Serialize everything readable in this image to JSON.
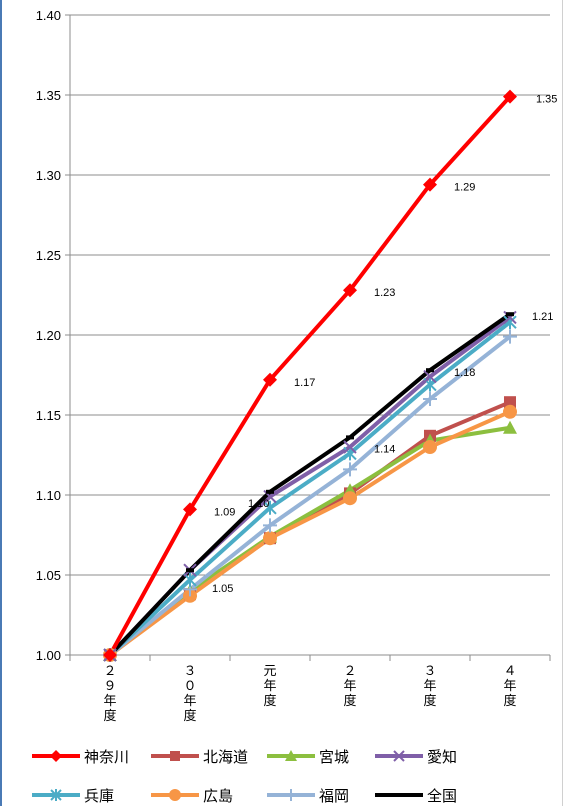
{
  "chart_data": {
    "type": "line",
    "x": [
      "２９年度",
      "３０年度",
      "元年度",
      "２年度",
      "３年度",
      "４年度"
    ],
    "ylim": [
      1.0,
      1.4
    ],
    "yticks": [
      "1.00",
      "1.05",
      "1.10",
      "1.15",
      "1.20",
      "1.25",
      "1.30",
      "1.35",
      "1.40"
    ],
    "grid": true,
    "legend_position": "bottom",
    "series": [
      {
        "name": "神奈川",
        "color": "#ff0000",
        "marker": "diamond",
        "values": [
          1.0,
          1.091,
          1.172,
          1.228,
          1.294,
          1.349
        ]
      },
      {
        "name": "北海道",
        "color": "#c0504d",
        "marker": "square",
        "values": [
          1.0,
          1.038,
          1.073,
          1.101,
          1.137,
          1.158
        ]
      },
      {
        "name": "宮城",
        "color": "#8cbf3f",
        "marker": "triangle",
        "values": [
          1.0,
          1.04,
          1.074,
          1.103,
          1.134,
          1.142
        ]
      },
      {
        "name": "愛知",
        "color": "#7f5fa8",
        "marker": "x",
        "values": [
          1.0,
          1.053,
          1.099,
          1.13,
          1.174,
          1.211
        ]
      },
      {
        "name": "兵庫",
        "color": "#4bacc6",
        "marker": "star",
        "values": [
          1.0,
          1.047,
          1.092,
          1.126,
          1.169,
          1.208
        ]
      },
      {
        "name": "広島",
        "color": "#f79646",
        "marker": "circle",
        "values": [
          1.0,
          1.037,
          1.073,
          1.098,
          1.13,
          1.152
        ]
      },
      {
        "name": "福岡",
        "color": "#95b3d7",
        "marker": "plus",
        "values": [
          1.0,
          1.041,
          1.081,
          1.116,
          1.16,
          1.199
        ]
      },
      {
        "name": "全国",
        "color": "#000000",
        "marker": "dash",
        "values": [
          1.0,
          1.053,
          1.102,
          1.136,
          1.178,
          1.213
        ]
      }
    ],
    "data_labels": [
      {
        "series": "神奈川",
        "index": 1,
        "text": "1.09"
      },
      {
        "series": "神奈川",
        "index": 2,
        "text": "1.17"
      },
      {
        "series": "神奈川",
        "index": 3,
        "text": "1.23"
      },
      {
        "series": "神奈川",
        "index": 4,
        "text": "1.29"
      },
      {
        "series": "神奈川",
        "index": 5,
        "text": "1.35"
      },
      {
        "series": "全国",
        "index": 1,
        "text": "1.05"
      },
      {
        "series": "全国",
        "index": 2,
        "text": "1.10"
      },
      {
        "series": "全国",
        "index": 3,
        "text": "1.14"
      },
      {
        "series": "全国",
        "index": 4,
        "text": "1.18"
      },
      {
        "series": "全国",
        "index": 5,
        "text": "1.21"
      }
    ]
  }
}
